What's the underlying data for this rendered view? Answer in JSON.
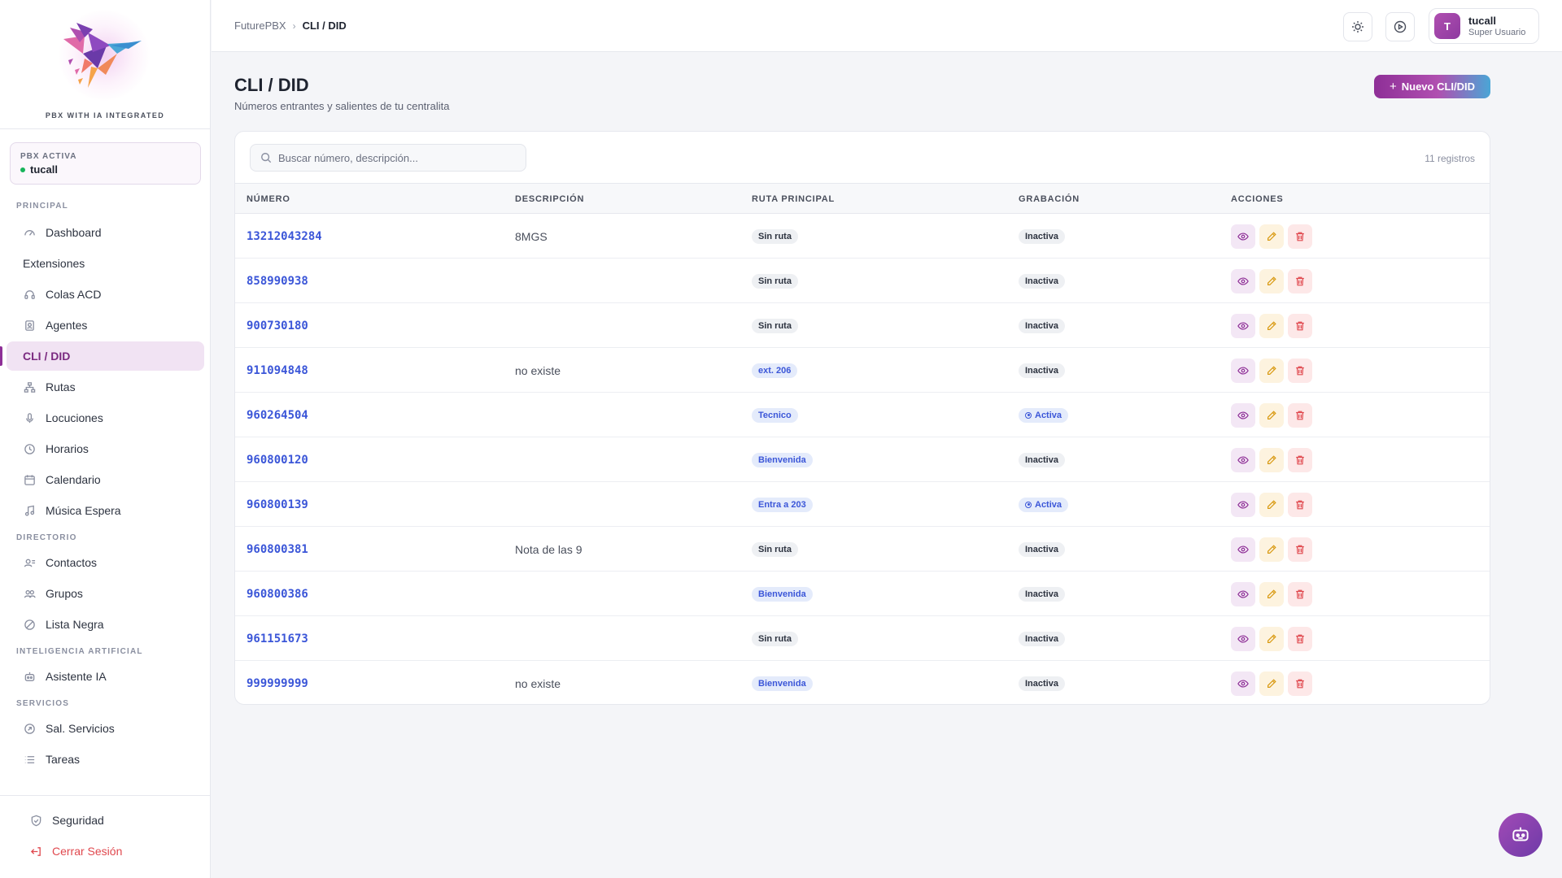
{
  "sidebar": {
    "tagline": "PBX WITH IA INTEGRATED",
    "pbx_card": {
      "label": "PBX ACTIVA",
      "value": "tucall"
    },
    "sections": {
      "principal": "PRINCIPAL",
      "directorio": "DIRECTORIO",
      "ia": "INTELIGENCIA ARTIFICIAL",
      "servicios": "SERVICIOS"
    },
    "items": {
      "dashboard": "Dashboard",
      "extensiones": "Extensiones",
      "colas": "Colas ACD",
      "agentes": "Agentes",
      "cli": "CLI / DID",
      "rutas": "Rutas",
      "locuciones": "Locuciones",
      "horarios": "Horarios",
      "calendario": "Calendario",
      "musica": "Música Espera",
      "contactos": "Contactos",
      "grupos": "Grupos",
      "lista_negra": "Lista Negra",
      "asistente": "Asistente IA",
      "sal_servicios": "Sal. Servicios",
      "tareas": "Tareas"
    },
    "bottom": {
      "seguridad": "Seguridad",
      "logout": "Cerrar Sesión"
    }
  },
  "topbar": {
    "breadcrumb": {
      "root": "FuturePBX",
      "current": "CLI / DID"
    },
    "user": {
      "initial": "T",
      "name": "tucall",
      "role": "Super Usuario"
    }
  },
  "page": {
    "title": "CLI / DID",
    "subtitle": "Números entrantes y salientes de tu centralita",
    "new_button": "Nuevo CLI/DID"
  },
  "table": {
    "search_placeholder": "Buscar número, descripción...",
    "count": "11 registros",
    "headers": {
      "numero": "NÚMERO",
      "descripcion": "DESCRIPCIÓN",
      "ruta": "RUTA PRINCIPAL",
      "grabacion": "GRABACIÓN",
      "acciones": "ACCIONES"
    },
    "rows": [
      {
        "numero": "13212043284",
        "descripcion": "8MGS",
        "ruta": "Sin ruta",
        "grabacion": "Inactiva"
      },
      {
        "numero": "858990938",
        "descripcion": "",
        "ruta": "Sin ruta",
        "grabacion": "Inactiva"
      },
      {
        "numero": "900730180",
        "descripcion": "",
        "ruta": "Sin ruta",
        "grabacion": "Inactiva"
      },
      {
        "numero": "911094848",
        "descripcion": "no existe",
        "ruta": "ext. 206",
        "grabacion": "Inactiva"
      },
      {
        "numero": "960264504",
        "descripcion": "",
        "ruta": "Tecnico",
        "grabacion": "Activa"
      },
      {
        "numero": "960800120",
        "descripcion": "",
        "ruta": "Bienvenida",
        "grabacion": "Inactiva"
      },
      {
        "numero": "960800139",
        "descripcion": "",
        "ruta": "Entra a 203",
        "grabacion": "Activa"
      },
      {
        "numero": "960800381",
        "descripcion": "Nota de las 9",
        "ruta": "Sin ruta",
        "grabacion": "Inactiva"
      },
      {
        "numero": "960800386",
        "descripcion": "",
        "ruta": "Bienvenida",
        "grabacion": "Inactiva"
      },
      {
        "numero": "961151673",
        "descripcion": "",
        "ruta": "Sin ruta",
        "grabacion": "Inactiva"
      },
      {
        "numero": "999999999",
        "descripcion": "no existe",
        "ruta": "Bienvenida",
        "grabacion": "Inactiva"
      }
    ]
  },
  "colors": {
    "brand_purple": "#8e2f97",
    "link_blue": "#3b56d8",
    "status_green": "#16b45a",
    "danger_red": "#e0484e",
    "edit_amber": "#d99a12"
  }
}
